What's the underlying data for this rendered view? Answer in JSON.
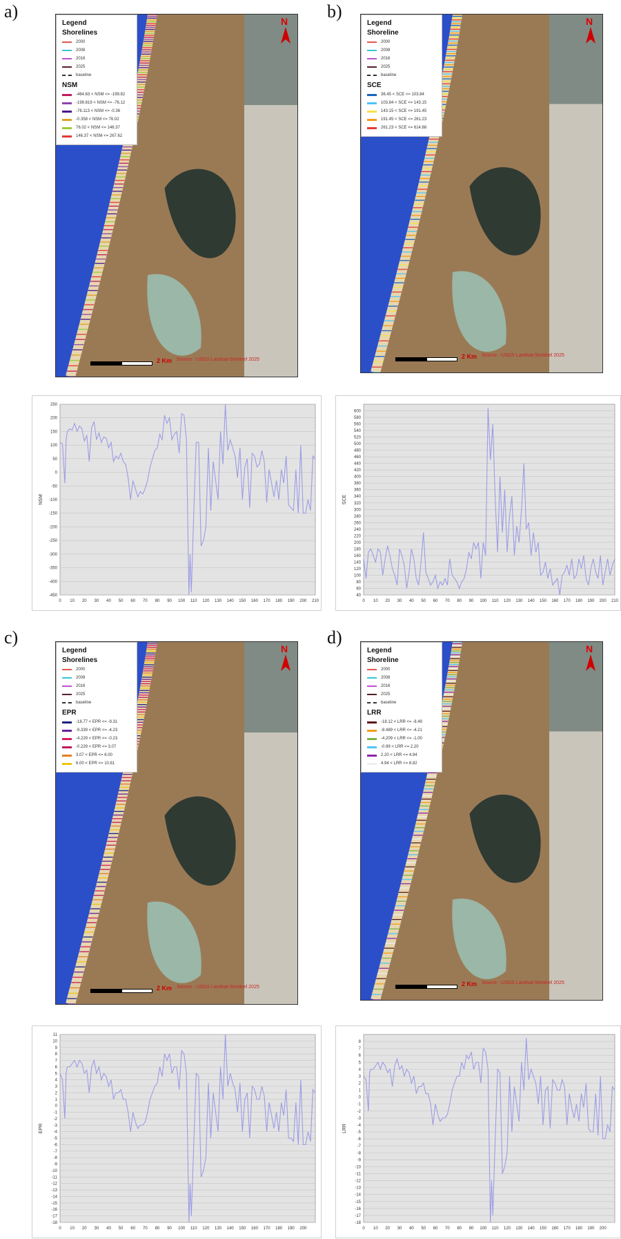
{
  "panels": [
    {
      "letter": "a)",
      "legend": {
        "title": "Legend",
        "subtitle": "Shorelines",
        "years": [
          {
            "label": "2000",
            "color": "#e2574c"
          },
          {
            "label": "2008",
            "color": "#35c6d6"
          },
          {
            "label": "2016",
            "color": "#c04fd0"
          },
          {
            "label": "2025",
            "color": "#5a1e28"
          }
        ],
        "baseline_label": "baseline",
        "index_title": "NSM",
        "classes": [
          {
            "label": "-464.63 < NSM <= -199.82",
            "color": "#c2185b"
          },
          {
            "label": "-199.819 < NSM <= -76.12",
            "color": "#8e44ad"
          },
          {
            "label": "-76.113 < NSM <= -0.36",
            "color": "#4a148c"
          },
          {
            "label": "-0.358 < NSM <= 76.02",
            "color": "#e0a020"
          },
          {
            "label": "76.02 < NSM <= 146.37",
            "color": "#9acd32"
          },
          {
            "label": "146.37 < NSM <= 267.62",
            "color": "#e53935"
          }
        ]
      },
      "scale_label": "2 Km",
      "source": "Source : USGS Landsat-Sentinel 2025",
      "north": "N"
    },
    {
      "letter": "b)",
      "legend": {
        "title": "Legend",
        "subtitle": "Shoreline",
        "years": [
          {
            "label": "2000",
            "color": "#e2574c"
          },
          {
            "label": "2008",
            "color": "#35c6d6"
          },
          {
            "label": "2016",
            "color": "#c04fd0"
          },
          {
            "label": "2025",
            "color": "#5a1e28"
          }
        ],
        "baseline_label": "baseline",
        "index_title": "SCE",
        "classes": [
          {
            "label": "36.45 < SCE <= 103.84",
            "color": "#1565c0"
          },
          {
            "label": "103.84 < SCE <= 143.15",
            "color": "#4fc3f7"
          },
          {
            "label": "143.15 < SCE <= 191.45",
            "color": "#f5e04a"
          },
          {
            "label": "191.45 < SCE <= 261.23",
            "color": "#f39c12"
          },
          {
            "label": "261.23 < SCE <= 614.88",
            "color": "#e53935"
          }
        ]
      },
      "scale_label": "2 Km",
      "source": "Source : USGS Landsat-Sentinel 2025",
      "north": "N"
    },
    {
      "letter": "c)",
      "legend": {
        "title": "Legend",
        "subtitle": "Shorelines",
        "years": [
          {
            "label": "2000",
            "color": "#e2574c"
          },
          {
            "label": "2008",
            "color": "#35c6d6"
          },
          {
            "label": "2016",
            "color": "#c04fd0"
          },
          {
            "label": "2025",
            "color": "#5a1e28"
          }
        ],
        "baseline_label": "baseline",
        "index_title": "EPR",
        "classes": [
          {
            "label": "-18.77 < EPR <= -9.31",
            "color": "#1a237e"
          },
          {
            "label": "-9.339 < EPR <= -4.23",
            "color": "#6a1b9a"
          },
          {
            "label": "-4.229 < EPR <= -0.23",
            "color": "#d81b60"
          },
          {
            "label": "-0.229 < EPR <= 3.07",
            "color": "#c2185b"
          },
          {
            "label": "3.07 < EPR <= 6.00",
            "color": "#e67e22"
          },
          {
            "label": "6.00 < EPR <= 10.81",
            "color": "#f1c40f"
          }
        ]
      },
      "scale_label": "2 Km",
      "source": "Source : USGS Landsat-Sentinel 2025",
      "north": "N"
    },
    {
      "letter": "d)",
      "legend": {
        "title": "Legend",
        "subtitle": "Shoreline",
        "years": [
          {
            "label": "2000",
            "color": "#e2574c"
          },
          {
            "label": "2008",
            "color": "#35c6d6"
          },
          {
            "label": "2016",
            "color": "#c04fd0"
          },
          {
            "label": "2025",
            "color": "#5a1e28"
          }
        ],
        "baseline_label": "baseline",
        "index_title": "LRR",
        "classes": [
          {
            "label": "-18.12 < LRR <= -8.49",
            "color": "#5d1a1a"
          },
          {
            "label": "-8.489 < LRR <= -4.21",
            "color": "#f39c12"
          },
          {
            "label": "-4.209 < LRR <= -1.00",
            "color": "#7cb342"
          },
          {
            "label": "-0.99 < LRR <= 2.20",
            "color": "#4fc3f7"
          },
          {
            "label": "2.20 < LRR <= 4.94",
            "color": "#8e24aa"
          },
          {
            "label": "4.94 < LRR <= 8.82",
            "color": "#eeeeee"
          }
        ]
      },
      "scale_label": "2 Km",
      "source": "Source : USGS Landsat-Sentinel 2025",
      "north": "N"
    }
  ],
  "chart_data": [
    {
      "type": "line",
      "ylabel": "NSM",
      "xlabel": "",
      "xlim": [
        0,
        210
      ],
      "ylim": [
        -450,
        250
      ],
      "xticks": [
        0,
        10,
        20,
        30,
        40,
        50,
        60,
        70,
        80,
        90,
        100,
        110,
        120,
        130,
        140,
        150,
        160,
        170,
        180,
        190,
        200,
        210
      ],
      "yticks": [
        250,
        200,
        150,
        100,
        50,
        0,
        -50,
        -100,
        -150,
        -200,
        -250,
        -300,
        -350,
        -400,
        -450
      ],
      "color": "#9c9ce6",
      "x": [
        0,
        2,
        4,
        5,
        6,
        8,
        10,
        12,
        14,
        16,
        18,
        20,
        22,
        24,
        26,
        28,
        30,
        32,
        34,
        36,
        38,
        40,
        42,
        44,
        46,
        48,
        50,
        52,
        54,
        56,
        58,
        60,
        62,
        64,
        66,
        68,
        70,
        72,
        74,
        76,
        78,
        80,
        82,
        84,
        86,
        88,
        90,
        92,
        94,
        96,
        98,
        100,
        102,
        104,
        106,
        107,
        108,
        110,
        112,
        114,
        116,
        118,
        120,
        122,
        124,
        126,
        128,
        130,
        132,
        134,
        136,
        138,
        140,
        142,
        144,
        146,
        148,
        150,
        152,
        154,
        156,
        158,
        160,
        162,
        164,
        166,
        168,
        170,
        172,
        174,
        176,
        178,
        180,
        182,
        184,
        186,
        188,
        190,
        192,
        194,
        196,
        198,
        200,
        202,
        204,
        206,
        208,
        210
      ],
      "values": [
        110,
        105,
        -40,
        120,
        150,
        160,
        155,
        180,
        150,
        170,
        160,
        115,
        135,
        40,
        165,
        185,
        120,
        145,
        110,
        130,
        125,
        90,
        110,
        40,
        60,
        50,
        70,
        40,
        30,
        -20,
        -100,
        -30,
        -60,
        -90,
        -70,
        -80,
        -60,
        -30,
        20,
        50,
        80,
        90,
        140,
        120,
        210,
        180,
        200,
        120,
        140,
        150,
        70,
        215,
        210,
        120,
        -460,
        -300,
        -440,
        -150,
        110,
        110,
        -270,
        -250,
        -200,
        90,
        -140,
        40,
        -30,
        -100,
        150,
        30,
        265,
        80,
        120,
        90,
        60,
        -20,
        90,
        -100,
        20,
        50,
        -130,
        70,
        60,
        20,
        30,
        80,
        40,
        -110,
        10,
        -40,
        -90,
        -30,
        -100,
        10,
        -40,
        60,
        -120,
        -130,
        -140,
        10,
        -150,
        100,
        -150,
        -150,
        -100,
        -140,
        60,
        50
      ]
    },
    {
      "type": "line",
      "ylabel": "SCE",
      "xlabel": "",
      "xlim": [
        0,
        210
      ],
      "ylim": [
        40,
        620
      ],
      "xticks": [
        0,
        10,
        20,
        30,
        40,
        50,
        60,
        70,
        80,
        90,
        100,
        110,
        120,
        130,
        140,
        150,
        160,
        170,
        180,
        190,
        200,
        210
      ],
      "yticks": [
        600,
        580,
        560,
        540,
        520,
        500,
        480,
        460,
        440,
        420,
        400,
        380,
        360,
        340,
        320,
        300,
        280,
        260,
        240,
        220,
        200,
        180,
        160,
        140,
        120,
        100,
        80,
        60,
        40
      ],
      "color": "#9c9ce6",
      "x": [
        0,
        2,
        4,
        6,
        8,
        10,
        12,
        14,
        16,
        18,
        20,
        22,
        24,
        26,
        28,
        30,
        32,
        34,
        36,
        38,
        40,
        42,
        44,
        46,
        48,
        50,
        52,
        54,
        56,
        58,
        60,
        62,
        64,
        66,
        68,
        70,
        72,
        74,
        76,
        78,
        80,
        82,
        84,
        86,
        88,
        90,
        92,
        94,
        96,
        98,
        100,
        102,
        104,
        106,
        108,
        110,
        112,
        114,
        116,
        118,
        120,
        122,
        124,
        126,
        128,
        130,
        132,
        134,
        136,
        138,
        140,
        142,
        144,
        146,
        148,
        150,
        152,
        154,
        156,
        158,
        160,
        162,
        164,
        166,
        168,
        170,
        172,
        174,
        176,
        178,
        180,
        182,
        184,
        186,
        188,
        190,
        192,
        194,
        196,
        198,
        200,
        202,
        204,
        206,
        208,
        210
      ],
      "values": [
        150,
        90,
        170,
        180,
        160,
        140,
        180,
        170,
        100,
        150,
        190,
        160,
        120,
        100,
        70,
        180,
        160,
        130,
        60,
        110,
        180,
        150,
        90,
        70,
        140,
        230,
        110,
        90,
        70,
        80,
        100,
        60,
        80,
        70,
        90,
        70,
        150,
        100,
        90,
        80,
        60,
        80,
        90,
        120,
        170,
        150,
        200,
        180,
        200,
        90,
        200,
        160,
        610,
        450,
        560,
        330,
        170,
        400,
        230,
        360,
        170,
        280,
        340,
        160,
        250,
        200,
        300,
        440,
        240,
        260,
        160,
        230,
        170,
        200,
        100,
        110,
        140,
        90,
        120,
        70,
        80,
        90,
        40,
        100,
        110,
        130,
        100,
        150,
        90,
        100,
        150,
        120,
        160,
        90,
        70,
        120,
        150,
        110,
        90,
        160,
        70,
        110,
        150,
        100,
        130,
        150
      ]
    },
    {
      "type": "line",
      "ylabel": "EPR",
      "xlabel": "",
      "xlim": [
        0,
        210
      ],
      "ylim": [
        -18,
        11
      ],
      "xticks": [
        0,
        10,
        20,
        30,
        40,
        50,
        60,
        70,
        80,
        90,
        100,
        110,
        120,
        130,
        140,
        150,
        160,
        170,
        180,
        190,
        200
      ],
      "yticks": [
        11,
        10,
        9,
        8,
        7,
        6,
        5,
        4,
        3,
        2,
        1,
        0,
        -1,
        -2,
        -3,
        -4,
        -5,
        -6,
        -7,
        -8,
        -9,
        -10,
        -11,
        -12,
        -13,
        -14,
        -15,
        -16,
        -17,
        -18
      ],
      "color": "#9c9ce6",
      "x": [
        0,
        2,
        4,
        5,
        6,
        8,
        10,
        12,
        14,
        16,
        18,
        20,
        22,
        24,
        26,
        28,
        30,
        32,
        34,
        36,
        38,
        40,
        42,
        44,
        46,
        48,
        50,
        52,
        54,
        56,
        58,
        60,
        62,
        64,
        66,
        68,
        70,
        72,
        74,
        76,
        78,
        80,
        82,
        84,
        86,
        88,
        90,
        92,
        94,
        96,
        98,
        100,
        102,
        104,
        106,
        107,
        108,
        110,
        112,
        114,
        116,
        118,
        120,
        122,
        124,
        126,
        128,
        130,
        132,
        134,
        136,
        138,
        140,
        142,
        144,
        146,
        148,
        150,
        152,
        154,
        156,
        158,
        160,
        162,
        164,
        166,
        168,
        170,
        172,
        174,
        176,
        178,
        180,
        182,
        184,
        186,
        188,
        190,
        192,
        194,
        196,
        198,
        200,
        202,
        204,
        206,
        208,
        210
      ],
      "values": [
        5,
        4,
        -2,
        5,
        6,
        6,
        6.5,
        7,
        6,
        7,
        6.5,
        5,
        5.5,
        2,
        6,
        7,
        5,
        6,
        4,
        5,
        4.5,
        3,
        4,
        1,
        2,
        2,
        2.5,
        1,
        1,
        -1,
        -4,
        -1,
        -2.5,
        -3.5,
        -3,
        -3,
        -2.5,
        -1,
        1,
        2,
        3,
        3.5,
        6,
        4.5,
        8,
        7,
        8,
        5,
        6,
        6,
        2.5,
        8.5,
        8,
        5,
        -18,
        -12,
        -17,
        -6,
        5,
        4.5,
        -11,
        -10,
        -8,
        3.5,
        -5,
        2,
        -1,
        -4,
        6,
        1,
        11,
        3,
        5,
        3.5,
        2.5,
        -1,
        3.5,
        -4,
        1,
        2,
        -5,
        3,
        2.5,
        1,
        1,
        3,
        1.5,
        -4,
        0.5,
        -1.5,
        -3.5,
        -1,
        -4,
        0.5,
        -1.5,
        2.5,
        -5,
        -5,
        -5.5,
        0.5,
        -6,
        4,
        -6,
        -6,
        -4,
        -5.5,
        2.5,
        2
      ]
    },
    {
      "type": "line",
      "ylabel": "LRR",
      "xlabel": "",
      "xlim": [
        0,
        210
      ],
      "ylim": [
        -18,
        9
      ],
      "xticks": [
        0,
        10,
        20,
        30,
        40,
        50,
        60,
        70,
        80,
        90,
        100,
        110,
        120,
        130,
        140,
        150,
        160,
        170,
        180,
        190,
        200
      ],
      "yticks": [
        8,
        7,
        6,
        5,
        4,
        3,
        2,
        1,
        0,
        -1,
        -2,
        -3,
        -4,
        -5,
        -6,
        -7,
        -8,
        -9,
        -10,
        -11,
        -12,
        -13,
        -14,
        -15,
        -16,
        -17,
        -18
      ],
      "color": "#9c9ce6",
      "x": [
        0,
        2,
        4,
        5,
        6,
        8,
        10,
        12,
        14,
        16,
        18,
        20,
        22,
        24,
        26,
        28,
        30,
        32,
        34,
        36,
        38,
        40,
        42,
        44,
        46,
        48,
        50,
        52,
        54,
        56,
        58,
        60,
        62,
        64,
        66,
        68,
        70,
        72,
        74,
        76,
        78,
        80,
        82,
        84,
        86,
        88,
        90,
        92,
        94,
        96,
        98,
        100,
        102,
        104,
        106,
        107,
        108,
        110,
        112,
        114,
        116,
        118,
        120,
        122,
        124,
        126,
        128,
        130,
        132,
        134,
        136,
        138,
        140,
        142,
        144,
        146,
        148,
        150,
        152,
        154,
        156,
        158,
        160,
        162,
        164,
        166,
        168,
        170,
        172,
        174,
        176,
        178,
        180,
        182,
        184,
        186,
        188,
        190,
        192,
        194,
        196,
        198,
        200,
        202,
        204,
        206,
        208,
        210
      ],
      "values": [
        3,
        2.5,
        -2,
        3.5,
        4,
        4,
        4.5,
        5,
        4,
        5,
        4.5,
        3.5,
        4,
        1.5,
        4.5,
        5.5,
        4,
        4.5,
        3,
        4,
        3.5,
        2,
        3,
        0.5,
        1.5,
        1.5,
        2,
        0.5,
        0.5,
        -1,
        -4,
        -1,
        -2.5,
        -3.5,
        -3,
        -3,
        -2.5,
        -1,
        1,
        2,
        3,
        3,
        5,
        4,
        6,
        5.5,
        6.5,
        4,
        5,
        5,
        2,
        7,
        6.5,
        4,
        -18,
        -12,
        -17,
        -6,
        4,
        3.5,
        -11,
        -10,
        -8,
        3,
        -5,
        1.5,
        -1,
        -3.5,
        5,
        1,
        8.5,
        2.5,
        4,
        3,
        2,
        -1,
        3,
        -4,
        1,
        1.5,
        -4.5,
        2.5,
        2,
        1,
        1,
        2.5,
        1.5,
        -4,
        0.5,
        -1.5,
        -3,
        -1,
        -3.5,
        0.5,
        -1.5,
        2,
        -4.5,
        -5,
        -5,
        0.5,
        -5.5,
        3,
        -6,
        -6,
        -4,
        -5,
        1.5,
        1
      ]
    }
  ]
}
